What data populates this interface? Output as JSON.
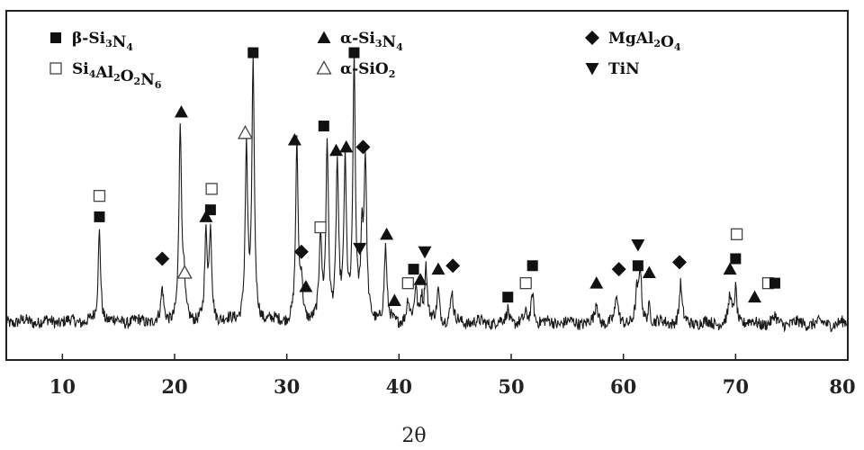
{
  "chart_data": {
    "type": "line",
    "title": "",
    "xlabel": "2θ",
    "ylabel": "",
    "xlim": [
      5,
      80
    ],
    "ylim": [
      0,
      100
    ],
    "x_ticks": [
      10,
      20,
      30,
      40,
      50,
      60,
      70,
      80
    ],
    "y_axis_visible": false,
    "grid": false,
    "legend_placement": "top",
    "baseline": 11,
    "legend": [
      {
        "key": "beta_si3n4",
        "label": "β-Si3N4",
        "marker": "filled-square"
      },
      {
        "key": "alpha_si3n4",
        "label": "α-Si3N4",
        "marker": "filled-triangle-up"
      },
      {
        "key": "mgal2o4",
        "label": "MgAl2O4",
        "marker": "filled-diamond"
      },
      {
        "key": "si4al2o2n6",
        "label": "Si4Al2O2N6",
        "marker": "open-square"
      },
      {
        "key": "alpha_sio2",
        "label": "α-SiO2",
        "marker": "open-triangle-up"
      },
      {
        "key": "tin",
        "label": "TiN",
        "marker": "filled-triangle-down"
      }
    ],
    "peaks": [
      {
        "x": 13.3,
        "y": 37
      },
      {
        "x": 18.9,
        "y": 20
      },
      {
        "x": 20.5,
        "y": 67
      },
      {
        "x": 20.8,
        "y": 22
      },
      {
        "x": 22.8,
        "y": 35
      },
      {
        "x": 23.2,
        "y": 37
      },
      {
        "x": 26.4,
        "y": 60
      },
      {
        "x": 27.0,
        "y": 83
      },
      {
        "x": 30.9,
        "y": 61
      },
      {
        "x": 31.3,
        "y": 22
      },
      {
        "x": 33.0,
        "y": 35
      },
      {
        "x": 33.6,
        "y": 62
      },
      {
        "x": 34.5,
        "y": 55
      },
      {
        "x": 35.2,
        "y": 55
      },
      {
        "x": 36.0,
        "y": 85
      },
      {
        "x": 36.7,
        "y": 33
      },
      {
        "x": 37.0,
        "y": 55
      },
      {
        "x": 38.8,
        "y": 32
      },
      {
        "x": 39.5,
        "y": 11
      },
      {
        "x": 40.8,
        "y": 17
      },
      {
        "x": 41.5,
        "y": 21
      },
      {
        "x": 42.0,
        "y": 18
      },
      {
        "x": 42.4,
        "y": 27
      },
      {
        "x": 43.5,
        "y": 20
      },
      {
        "x": 44.7,
        "y": 20
      },
      {
        "x": 49.7,
        "y": 15
      },
      {
        "x": 51.3,
        "y": 13
      },
      {
        "x": 51.9,
        "y": 20
      },
      {
        "x": 57.6,
        "y": 17
      },
      {
        "x": 59.4,
        "y": 19
      },
      {
        "x": 61.2,
        "y": 19
      },
      {
        "x": 61.5,
        "y": 26
      },
      {
        "x": 62.3,
        "y": 16
      },
      {
        "x": 65.1,
        "y": 22
      },
      {
        "x": 69.5,
        "y": 19
      },
      {
        "x": 70.0,
        "y": 21
      },
      {
        "x": 71.7,
        "y": 11
      },
      {
        "x": 73.5,
        "y": 13
      },
      {
        "x": 77.5,
        "y": 11
      }
    ],
    "phase_markers": [
      {
        "phase": "si4al2o2n6",
        "x": 13.3,
        "y": 47
      },
      {
        "phase": "beta_si3n4",
        "x": 13.3,
        "y": 41
      },
      {
        "phase": "mgal2o4",
        "x": 18.9,
        "y": 29
      },
      {
        "phase": "alpha_si3n4",
        "x": 20.6,
        "y": 71
      },
      {
        "phase": "alpha_sio2",
        "x": 20.9,
        "y": 25
      },
      {
        "phase": "alpha_si3n4",
        "x": 22.8,
        "y": 41
      },
      {
        "phase": "si4al2o2n6",
        "x": 23.3,
        "y": 49
      },
      {
        "phase": "beta_si3n4",
        "x": 23.2,
        "y": 43
      },
      {
        "phase": "alpha_sio2",
        "x": 26.3,
        "y": 65
      },
      {
        "phase": "beta_si3n4",
        "x": 27.0,
        "y": 88
      },
      {
        "phase": "alpha_si3n4",
        "x": 30.7,
        "y": 63
      },
      {
        "phase": "mgal2o4",
        "x": 31.3,
        "y": 31
      },
      {
        "phase": "alpha_si3n4",
        "x": 31.7,
        "y": 21
      },
      {
        "phase": "si4al2o2n6",
        "x": 33.0,
        "y": 38
      },
      {
        "phase": "beta_si3n4",
        "x": 33.3,
        "y": 67
      },
      {
        "phase": "alpha_si3n4",
        "x": 34.4,
        "y": 60
      },
      {
        "phase": "alpha_si3n4",
        "x": 35.3,
        "y": 61
      },
      {
        "phase": "beta_si3n4",
        "x": 36.0,
        "y": 88
      },
      {
        "phase": "mgal2o4",
        "x": 36.8,
        "y": 61
      },
      {
        "phase": "tin",
        "x": 36.5,
        "y": 32
      },
      {
        "phase": "alpha_si3n4",
        "x": 38.9,
        "y": 36
      },
      {
        "phase": "alpha_si3n4",
        "x": 39.6,
        "y": 17
      },
      {
        "phase": "si4al2o2n6",
        "x": 40.8,
        "y": 22
      },
      {
        "phase": "beta_si3n4",
        "x": 41.3,
        "y": 26
      },
      {
        "phase": "alpha_si3n4",
        "x": 41.9,
        "y": 23
      },
      {
        "phase": "tin",
        "x": 42.3,
        "y": 31
      },
      {
        "phase": "alpha_si3n4",
        "x": 43.5,
        "y": 26
      },
      {
        "phase": "mgal2o4",
        "x": 44.8,
        "y": 27
      },
      {
        "phase": "beta_si3n4",
        "x": 49.7,
        "y": 18
      },
      {
        "phase": "si4al2o2n6",
        "x": 51.3,
        "y": 22
      },
      {
        "phase": "beta_si3n4",
        "x": 51.9,
        "y": 27
      },
      {
        "phase": "alpha_si3n4",
        "x": 57.6,
        "y": 22
      },
      {
        "phase": "mgal2o4",
        "x": 59.6,
        "y": 26
      },
      {
        "phase": "beta_si3n4",
        "x": 61.3,
        "y": 27
      },
      {
        "phase": "tin",
        "x": 61.3,
        "y": 33
      },
      {
        "phase": "alpha_si3n4",
        "x": 62.3,
        "y": 25
      },
      {
        "phase": "mgal2o4",
        "x": 65.0,
        "y": 28
      },
      {
        "phase": "alpha_si3n4",
        "x": 69.5,
        "y": 26
      },
      {
        "phase": "beta_si3n4",
        "x": 70.0,
        "y": 29
      },
      {
        "phase": "si4al2o2n6",
        "x": 70.1,
        "y": 36
      },
      {
        "phase": "alpha_si3n4",
        "x": 71.7,
        "y": 18
      },
      {
        "phase": "si4al2o2n6",
        "x": 72.9,
        "y": 22
      },
      {
        "phase": "beta_si3n4",
        "x": 73.5,
        "y": 22
      }
    ]
  }
}
